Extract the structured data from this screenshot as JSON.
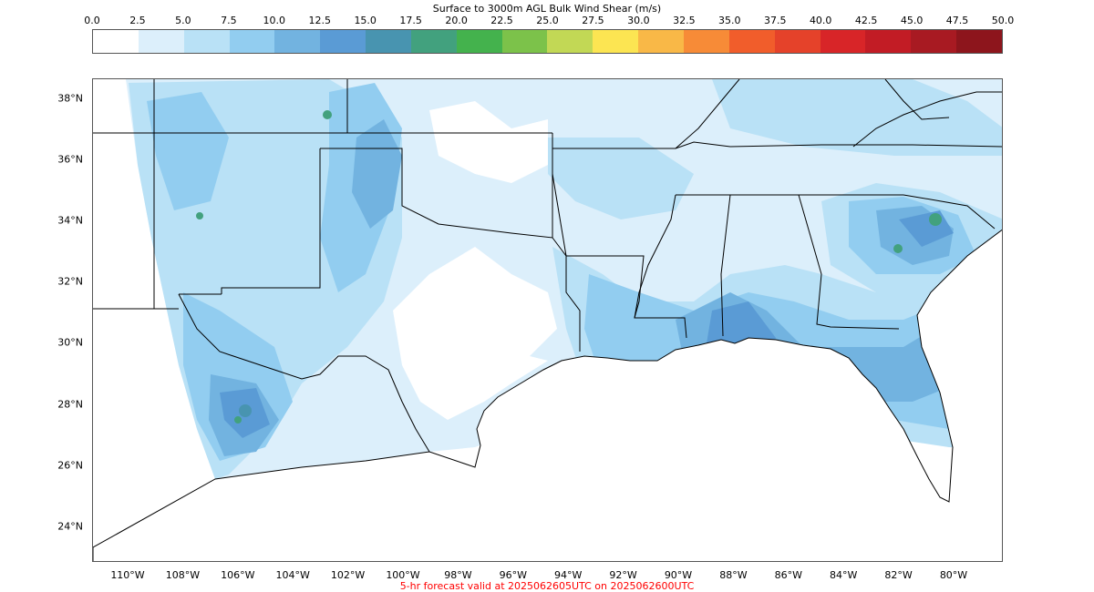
{
  "colorbar": {
    "title": "Surface to 3000m AGL Bulk Wind Shear (m/s)",
    "ticks": [
      "0.0",
      "2.5",
      "5.0",
      "7.5",
      "10.0",
      "12.5",
      "15.0",
      "17.5",
      "20.0",
      "22.5",
      "25.0",
      "27.5",
      "30.0",
      "32.5",
      "35.0",
      "37.5",
      "40.0",
      "42.5",
      "45.0",
      "47.5",
      "50.0"
    ],
    "colors": [
      "#ffffff",
      "#dceffb",
      "#b9e1f6",
      "#92cdf0",
      "#72b3e0",
      "#5a9bd5",
      "#4894b0",
      "#42a17e",
      "#44b24d",
      "#7cc24a",
      "#c2d855",
      "#fce552",
      "#f9b847",
      "#f78b37",
      "#f15d2b",
      "#e5422a",
      "#d82528",
      "#c21c25",
      "#a81a22",
      "#8d151c"
    ]
  },
  "map": {
    "lat_labels": [
      {
        "text": "38°N",
        "lat": 38
      },
      {
        "text": "36°N",
        "lat": 36
      },
      {
        "text": "34°N",
        "lat": 34
      },
      {
        "text": "32°N",
        "lat": 32
      },
      {
        "text": "30°N",
        "lat": 30
      },
      {
        "text": "28°N",
        "lat": 28
      },
      {
        "text": "26°N",
        "lat": 26
      },
      {
        "text": "24°N",
        "lat": 24
      }
    ],
    "lon_labels": [
      {
        "text": "110°W",
        "lon": -110
      },
      {
        "text": "108°W",
        "lon": -108
      },
      {
        "text": "106°W",
        "lon": -106
      },
      {
        "text": "104°W",
        "lon": -104
      },
      {
        "text": "102°W",
        "lon": -102
      },
      {
        "text": "100°W",
        "lon": -100
      },
      {
        "text": "98°W",
        "lon": -98
      },
      {
        "text": "96°W",
        "lon": -96
      },
      {
        "text": "94°W",
        "lon": -94
      },
      {
        "text": "92°W",
        "lon": -92
      },
      {
        "text": "90°W",
        "lon": -90
      },
      {
        "text": "88°W",
        "lon": -88
      },
      {
        "text": "86°W",
        "lon": -86
      },
      {
        "text": "84°W",
        "lon": -84
      },
      {
        "text": "82°W",
        "lon": -82
      },
      {
        "text": "80°W",
        "lon": -80
      }
    ]
  },
  "footer": {
    "text": "5-hr forecast valid at 2025062605UTC on 2025062600UTC",
    "color": "#ff0000"
  }
}
